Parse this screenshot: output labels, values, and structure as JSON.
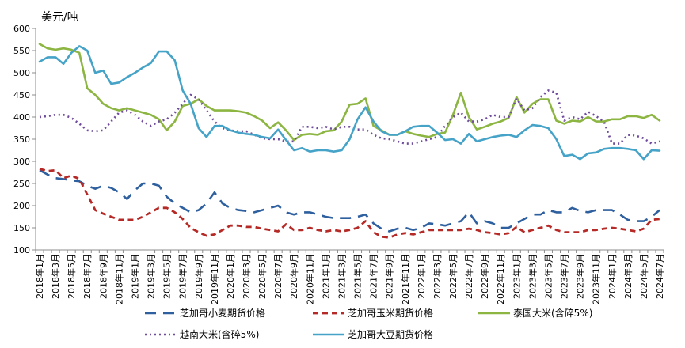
{
  "chart_data": {
    "type": "line",
    "ylabel": "美元/吨",
    "ylim": [
      100,
      600
    ],
    "yticks": [
      100,
      150,
      200,
      250,
      300,
      350,
      400,
      450,
      500,
      550,
      600
    ],
    "grid": false,
    "legend_position": "bottom",
    "x": [
      "2018年1月",
      "2018年2月",
      "2018年3月",
      "2018年4月",
      "2018年5月",
      "2018年6月",
      "2018年7月",
      "2018年8月",
      "2018年9月",
      "2018年10月",
      "2018年11月",
      "2018年12月",
      "2019年1月",
      "2019年2月",
      "2019年3月",
      "2019年4月",
      "2019年5月",
      "2019年6月",
      "2019年7月",
      "2019年8月",
      "2019年9月",
      "2019年10月",
      "2019年11月",
      "2019年12月",
      "2020年1月",
      "2020年2月",
      "2020年3月",
      "2020年4月",
      "2020年5月",
      "2020年6月",
      "2020年7月",
      "2020年8月",
      "2020年9月",
      "2020年10月",
      "2020年11月",
      "2020年12月",
      "2021年1月",
      "2021年2月",
      "2021年3月",
      "2021年4月",
      "2021年5月",
      "2021年6月",
      "2021年7月",
      "2021年8月",
      "2021年9月",
      "2021年10月",
      "2021年11月",
      "2021年12月",
      "2022年1月",
      "2022年2月",
      "2022年3月",
      "2022年4月",
      "2022年5月",
      "2022年6月",
      "2022年7月",
      "2022年8月",
      "2022年9月",
      "2022年10月",
      "2022年11月",
      "2022年12月",
      "2023年1月",
      "2023年2月",
      "2023年3月",
      "2023年4月",
      "2023年5月",
      "2023年6月",
      "2023年7月",
      "2023年8月",
      "2023年9月",
      "2023年10月",
      "2023年11月",
      "2023年12月",
      "2024年1月",
      "2024年2月",
      "2024年3月",
      "2024年4月",
      "2024年5月",
      "2024年6月",
      "2024年7月"
    ],
    "tick_labels": [
      "2018年1月",
      "2018年3月",
      "2018年5月",
      "2018年7月",
      "2018年9月",
      "2018年11月",
      "2019年1月",
      "2019年3月",
      "2019年5月",
      "2019年7月",
      "2019年9月",
      "2019年11月",
      "2020年1月",
      "2020年3月",
      "2020年5月",
      "2020年7月",
      "2020年9月",
      "2020年11月",
      "2021年1月",
      "2021年3月",
      "2021年5月",
      "2021年7月",
      "2021年9月",
      "2021年11月",
      "2022年1月",
      "2022年3月",
      "2022年5月",
      "2022年7月",
      "2022年9月",
      "2022年11月",
      "2023年1月",
      "2023年3月",
      "2023年5月",
      "2023年7月",
      "2023年9月",
      "2023年11月",
      "2024年1月",
      "2024年3月",
      "2024年5月",
      "2024年7月"
    ],
    "series": [
      {
        "name": "芝加哥小麦期货价格",
        "color": "#2e5f9e",
        "dash": "14,9",
        "width": 2.6,
        "values": [
          280,
          270,
          262,
          260,
          257,
          255,
          245,
          238,
          245,
          240,
          230,
          215,
          235,
          250,
          250,
          245,
          220,
          205,
          195,
          185,
          190,
          205,
          230,
          205,
          195,
          190,
          188,
          185,
          190,
          195,
          200,
          185,
          180,
          185,
          185,
          180,
          175,
          172,
          172,
          172,
          175,
          180,
          160,
          148,
          142,
          148,
          150,
          145,
          150,
          160,
          158,
          155,
          160,
          165,
          185,
          160,
          165,
          160,
          150,
          150,
          160,
          170,
          180,
          180,
          190,
          185,
          185,
          195,
          188,
          185,
          190,
          190,
          190,
          180,
          168,
          165,
          165,
          175,
          190
        ]
      },
      {
        "name": "芝加哥玉米期货价格",
        "color": "#b52a26",
        "dash": "7,5",
        "width": 2.8,
        "values": [
          283,
          278,
          280,
          262,
          268,
          260,
          225,
          190,
          182,
          175,
          168,
          168,
          168,
          175,
          185,
          195,
          195,
          185,
          170,
          150,
          140,
          132,
          135,
          145,
          155,
          155,
          152,
          152,
          148,
          145,
          142,
          158,
          145,
          145,
          150,
          145,
          142,
          145,
          142,
          145,
          150,
          165,
          140,
          130,
          128,
          135,
          138,
          135,
          140,
          145,
          145,
          145,
          145,
          145,
          148,
          145,
          140,
          138,
          135,
          138,
          152,
          140,
          145,
          150,
          155,
          145,
          140,
          140,
          140,
          145,
          145,
          148,
          150,
          148,
          145,
          142,
          148,
          168,
          170
        ]
      },
      {
        "name": "泰国大米(含碎5%)",
        "color": "#8cb542",
        "dash": "",
        "width": 2.6,
        "values": [
          565,
          555,
          552,
          555,
          552,
          545,
          465,
          450,
          430,
          420,
          415,
          420,
          415,
          410,
          405,
          395,
          370,
          390,
          425,
          430,
          440,
          425,
          415,
          415,
          415,
          413,
          410,
          402,
          392,
          375,
          388,
          370,
          348,
          360,
          362,
          360,
          368,
          370,
          390,
          428,
          430,
          442,
          380,
          370,
          360,
          360,
          368,
          362,
          358,
          355,
          362,
          365,
          405,
          455,
          400,
          372,
          378,
          385,
          390,
          398,
          445,
          410,
          430,
          440,
          440,
          392,
          385,
          392,
          390,
          400,
          390,
          390,
          395,
          395,
          402,
          402,
          398,
          405,
          392
        ]
      },
      {
        "name": "越南大米(含碎5%)",
        "color": "#6f4c9b",
        "dash": "2,4",
        "width": 2.6,
        "values": [
          400,
          402,
          405,
          405,
          398,
          385,
          370,
          368,
          370,
          390,
          410,
          415,
          405,
          390,
          380,
          390,
          395,
          410,
          430,
          450,
          440,
          415,
          390,
          375,
          370,
          368,
          368,
          360,
          352,
          350,
          350,
          345,
          345,
          378,
          378,
          375,
          378,
          372,
          378,
          378,
          372,
          372,
          360,
          352,
          350,
          345,
          340,
          340,
          345,
          350,
          355,
          380,
          400,
          410,
          390,
          390,
          395,
          405,
          400,
          400,
          442,
          415,
          420,
          445,
          460,
          455,
          392,
          400,
          395,
          412,
          402,
          390,
          340,
          340,
          360,
          358,
          352,
          340,
          345
        ]
      },
      {
        "name": "芝加哥大豆期货价格",
        "color": "#46a3c8",
        "dash": "",
        "width": 2.6,
        "values": [
          525,
          535,
          535,
          520,
          545,
          560,
          550,
          500,
          505,
          475,
          478,
          490,
          500,
          512,
          522,
          548,
          548,
          528,
          460,
          430,
          375,
          355,
          380,
          380,
          370,
          365,
          362,
          360,
          355,
          352,
          372,
          348,
          325,
          330,
          322,
          325,
          325,
          322,
          325,
          350,
          395,
          422,
          390,
          368,
          360,
          360,
          368,
          378,
          380,
          380,
          365,
          348,
          350,
          340,
          362,
          345,
          350,
          355,
          358,
          360,
          355,
          370,
          382,
          380,
          375,
          350,
          312,
          315,
          305,
          318,
          320,
          328,
          330,
          330,
          328,
          325,
          305,
          325,
          324
        ]
      }
    ]
  }
}
